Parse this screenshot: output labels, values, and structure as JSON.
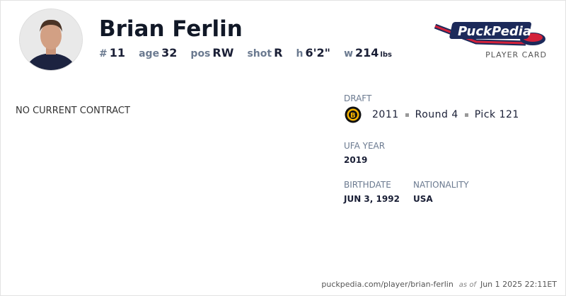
{
  "player": {
    "name": "Brian Ferlin",
    "number_label": "#",
    "number": "11",
    "age_label": "age",
    "age": "32",
    "pos_label": "pos",
    "pos": "RW",
    "shot_label": "shot",
    "shot": "R",
    "height_label": "h",
    "height": "6'2\"",
    "weight_label": "w",
    "weight": "214",
    "weight_unit": "lbs"
  },
  "brand": {
    "logo_text": "PuckPedia",
    "subtitle": "PLAYER CARD"
  },
  "contract": {
    "status": "NO CURRENT CONTRACT"
  },
  "draft": {
    "label": "DRAFT",
    "team_icon": "boston-bruins-logo",
    "year": "2011",
    "round": "Round 4",
    "pick": "Pick 121"
  },
  "ufa": {
    "label": "UFA YEAR",
    "value": "2019"
  },
  "birthdate": {
    "label": "BIRTHDATE",
    "value": "JUN 3, 1992"
  },
  "nationality": {
    "label": "NATIONALITY",
    "value": "USA"
  },
  "footer": {
    "url": "puckpedia.com/player/brian-ferlin",
    "as_of": "as of",
    "timestamp": "Jun 1 2025 22:11ET"
  }
}
